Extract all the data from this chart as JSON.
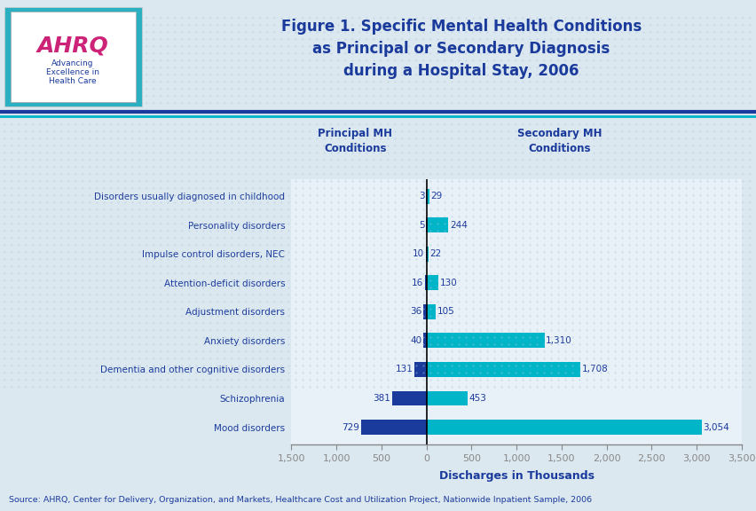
{
  "categories": [
    "Disorders usually diagnosed in childhood",
    "Personality disorders",
    "Impulse control disorders, NEC",
    "Attention-deficit disorders",
    "Adjustment disorders",
    "Anxiety disorders",
    "Dementia and other cognitive disorders",
    "Schizophrenia",
    "Mood disorders"
  ],
  "principal_values": [
    3,
    5,
    10,
    16,
    36,
    40,
    131,
    381,
    729
  ],
  "secondary_values": [
    29,
    244,
    22,
    130,
    105,
    1310,
    1708,
    453,
    3054
  ],
  "principal_color": "#1a3a9c",
  "secondary_color": "#00b5c8",
  "background_color": "#dce8f0",
  "chart_bg": "#e8f0f8",
  "title_line1": "Figure 1. Specific Mental Health Conditions",
  "title_line2": "as Principal or Secondary Diagnosis",
  "title_line3": "during a Hospital Stay, 2006",
  "xlabel": "Discharges in Thousands",
  "xlim_left": -1500,
  "xlim_right": 3500,
  "xticks": [
    -1500,
    -1000,
    -500,
    0,
    500,
    1000,
    1500,
    2000,
    2500,
    3000,
    3500
  ],
  "xtick_labels": [
    "1,500",
    "1,000",
    "500",
    "0",
    "500",
    "1,000",
    "1,500",
    "2,000",
    "2,500",
    "3,000",
    "3,500"
  ],
  "col_header_principal": "Principal MH\nConditions",
  "col_header_secondary": "Secondary MH\nConditions",
  "source_text": "Source: AHRQ, Center for Delivery, Organization, and Markets, Healthcare Cost and Utilization Project, Nationwide Inpatient Sample, 2006",
  "title_color": "#1a3a9c",
  "label_color": "#1a3a9c",
  "header_color": "#1a3a9c",
  "separator_color1": "#1a3a9c",
  "separator_color2": "#00b5c8"
}
